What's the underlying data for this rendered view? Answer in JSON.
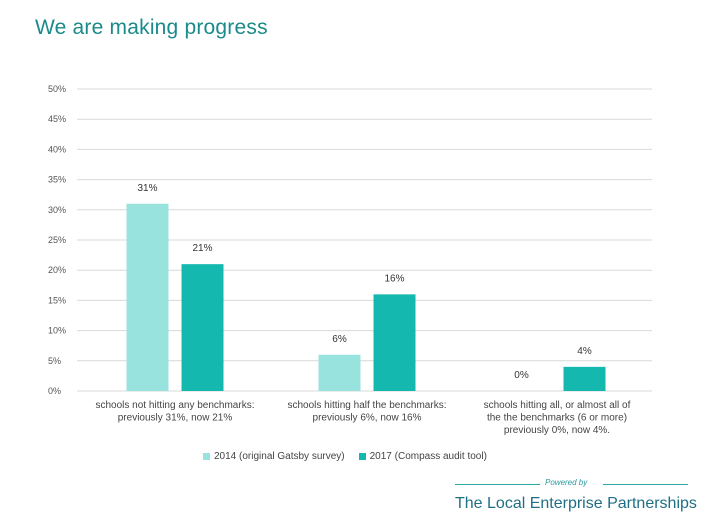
{
  "title": "We are making progress",
  "chart_data": {
    "type": "bar",
    "categories": [
      [
        "schools not hitting any benchmarks:",
        "previously 31%, now 21%"
      ],
      [
        "schools hitting half the benchmarks:",
        "previously 6%, now 16%"
      ],
      [
        "schools hitting all, or almost all of",
        "the the benchmarks (6 or more)",
        "previously 0%, now 4%."
      ]
    ],
    "series": [
      {
        "name": "2014 (original Gatsby survey)",
        "values": [
          31,
          6,
          0
        ],
        "labels": [
          "31%",
          "6%",
          "0%"
        ],
        "color": "#99e3df"
      },
      {
        "name": "2017 (Compass audit tool)",
        "values": [
          21,
          16,
          4
        ],
        "labels": [
          "21%",
          "16%",
          "4%"
        ],
        "color": "#14b8ae"
      }
    ],
    "yticks": [
      "0%",
      "5%",
      "10%",
      "15%",
      "20%",
      "25%",
      "30%",
      "35%",
      "40%",
      "45%",
      "50%"
    ],
    "ylim": [
      0,
      50
    ],
    "grid": true,
    "legend": "bottom"
  },
  "footer": {
    "powered_by": "Powered by",
    "organisation": "The Local Enterprise Partnerships"
  },
  "colors": {
    "title": "#1a8a8a",
    "grid": "#d9d9d9",
    "axis_text": "#555555"
  }
}
